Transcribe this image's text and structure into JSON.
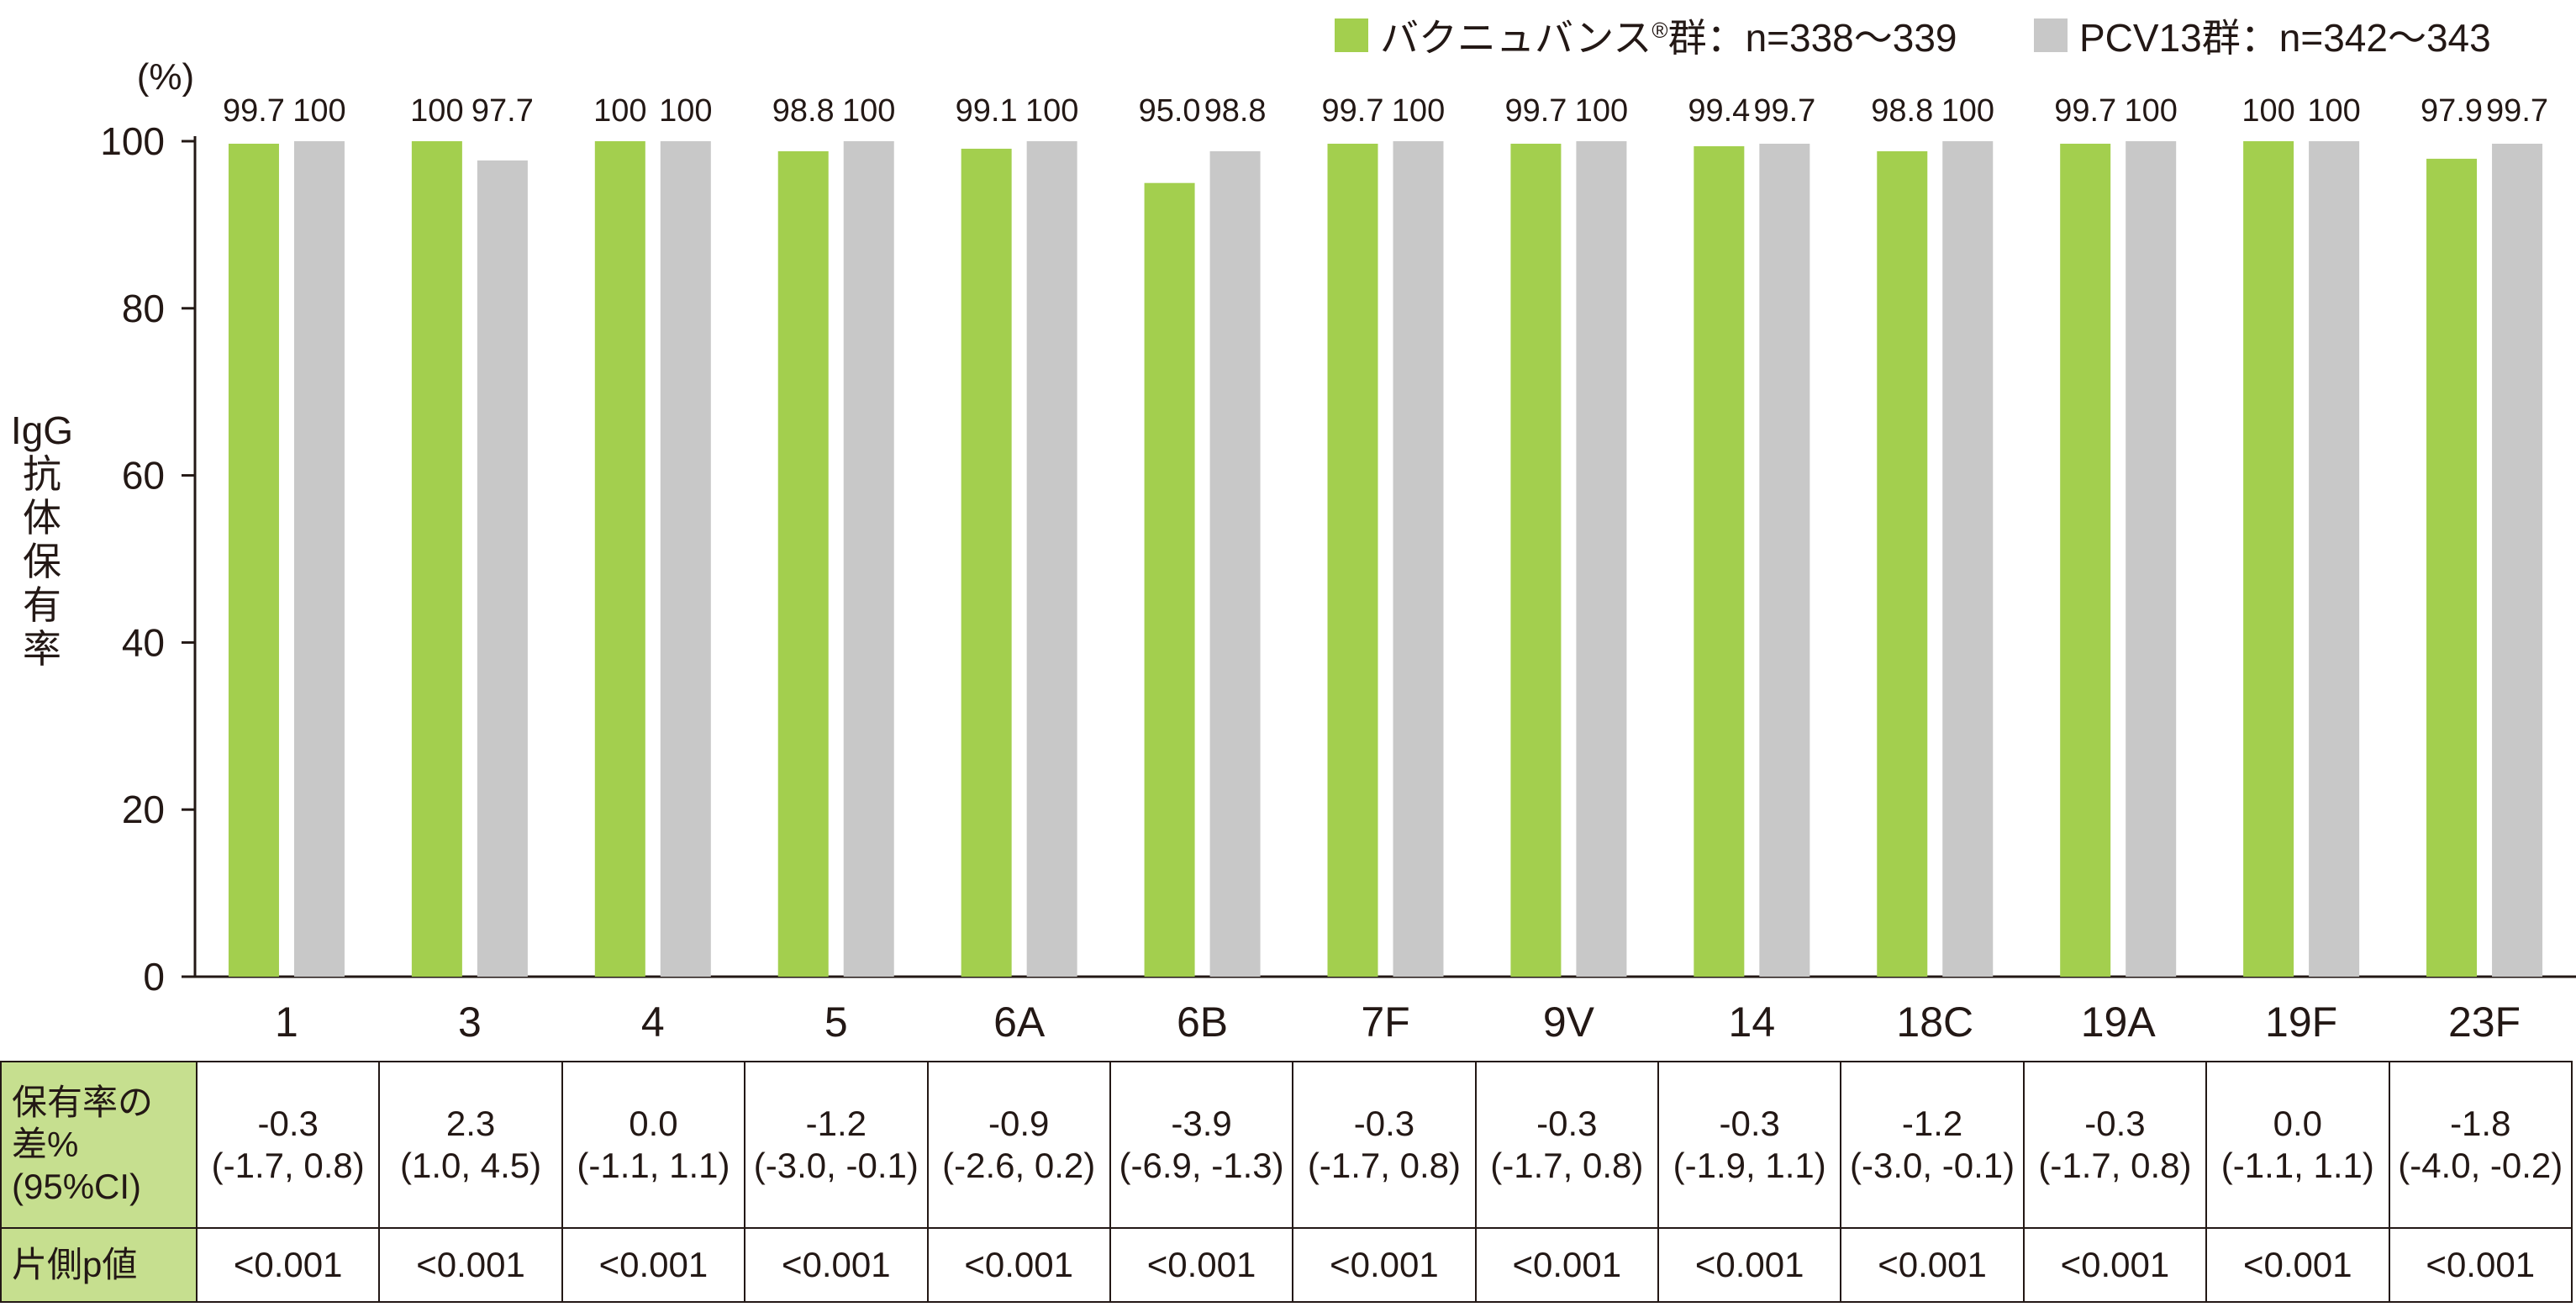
{
  "legend": [
    {
      "label": "バクニュバンス",
      "mark": "®",
      "suffix": "群：n=338～339",
      "color": "#a3cf4e"
    },
    {
      "label": "PCV13群：n=342～343",
      "mark": "",
      "suffix": "",
      "color": "#c8c8c8"
    }
  ],
  "chart_data": {
    "type": "bar",
    "ylabel_top": "(%)",
    "ylabel": [
      "IgG",
      "抗",
      "体",
      "保",
      "有",
      "率"
    ],
    "ylim": [
      0,
      100
    ],
    "yticks": [
      0,
      20,
      40,
      60,
      80,
      100
    ],
    "grid": false,
    "legend_position": "top-right",
    "categories": [
      "1",
      "3",
      "4",
      "5",
      "6A",
      "6B",
      "7F",
      "9V",
      "14",
      "18C",
      "19A",
      "19F",
      "23F"
    ],
    "series": [
      {
        "name": "バクニュバンス®群：n=338～339",
        "color": "#a3cf4e",
        "values": [
          99.7,
          100,
          100,
          98.8,
          99.1,
          95.0,
          99.7,
          99.7,
          99.4,
          98.8,
          99.7,
          100,
          97.9
        ],
        "labels": [
          "99.7",
          "100",
          "100",
          "98.8",
          "99.1",
          "95.0",
          "99.7",
          "99.7",
          "99.4",
          "98.8",
          "99.7",
          "100",
          "97.9"
        ]
      },
      {
        "name": "PCV13群：n=342～343",
        "color": "#c8c8c8",
        "values": [
          100,
          97.7,
          100,
          100,
          100,
          98.8,
          100,
          100,
          99.7,
          100,
          100,
          100,
          99.7
        ],
        "labels": [
          "100",
          "97.7",
          "100",
          "100",
          "100",
          "98.8",
          "100",
          "100",
          "99.7",
          "100",
          "100",
          "100",
          "99.7"
        ]
      }
    ]
  },
  "table": {
    "diff_header": [
      "保有率の差%",
      "(95%CI)"
    ],
    "p_header": "片側p値",
    "diff": [
      [
        "-0.3",
        "(-1.7, 0.8)"
      ],
      [
        "2.3",
        "(1.0, 4.5)"
      ],
      [
        "0.0",
        "(-1.1, 1.1)"
      ],
      [
        "-1.2",
        "(-3.0, -0.1)"
      ],
      [
        "-0.9",
        "(-2.6, 0.2)"
      ],
      [
        "-3.9",
        "(-6.9, -1.3)"
      ],
      [
        "-0.3",
        "(-1.7, 0.8)"
      ],
      [
        "-0.3",
        "(-1.7, 0.8)"
      ],
      [
        "-0.3",
        "(-1.9, 1.1)"
      ],
      [
        "-1.2",
        "(-3.0, -0.1)"
      ],
      [
        "-0.3",
        "(-1.7, 0.8)"
      ],
      [
        "0.0",
        "(-1.1, 1.1)"
      ],
      [
        "-1.8",
        "(-4.0, -0.2)"
      ]
    ],
    "p": [
      "<0.001",
      "<0.001",
      "<0.001",
      "<0.001",
      "<0.001",
      "<0.001",
      "<0.001",
      "<0.001",
      "<0.001",
      "<0.001",
      "<0.001",
      "<0.001",
      "<0.001"
    ]
  }
}
